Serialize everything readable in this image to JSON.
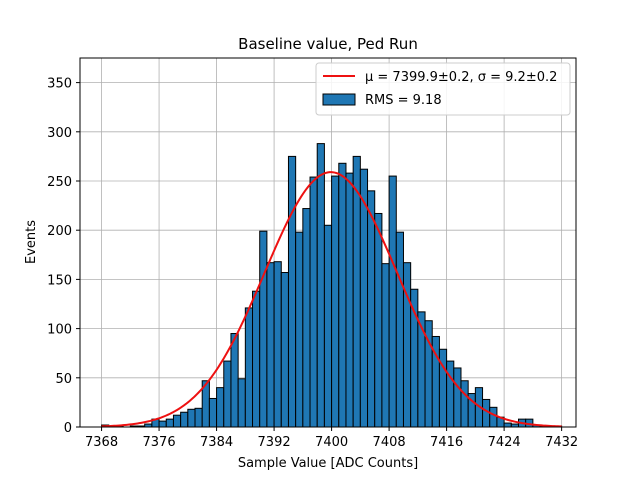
{
  "chart_data": {
    "type": "bar",
    "title": "Baseline value, Ped Run",
    "xlabel": "Sample Value [ADC Counts]",
    "ylabel": "Events",
    "xlim": [
      7365,
      7434
    ],
    "ylim": [
      0,
      375
    ],
    "xticks": [
      7368,
      7376,
      7384,
      7392,
      7400,
      7408,
      7416,
      7424,
      7432
    ],
    "yticks": [
      0,
      50,
      100,
      150,
      200,
      250,
      300,
      350
    ],
    "grid": true,
    "legend_position": "top-right",
    "bin_width": 1,
    "bin_start": 7368,
    "values": [
      2,
      0,
      1,
      0,
      1,
      1,
      3,
      8,
      6,
      8,
      12,
      15,
      18,
      19,
      47,
      29,
      40,
      67,
      95,
      49,
      121,
      138,
      199,
      167,
      168,
      157,
      275,
      198,
      222,
      254,
      288,
      205,
      255,
      268,
      258,
      275,
      262,
      240,
      217,
      166,
      255,
      198,
      167,
      140,
      117,
      108,
      92,
      79,
      67,
      60,
      47,
      34,
      40,
      28,
      20,
      10,
      4,
      3,
      8,
      8,
      2,
      1,
      0,
      1,
      0
    ],
    "series": [
      {
        "name": "RMS = 9.18",
        "type": "histogram",
        "color": "#1f77b4",
        "edgecolor": "#000000"
      },
      {
        "name": "$\\mu = 7399.9\\pm0.2$, $\\sigma = 9.2\\pm0.2$",
        "type": "gaussian-fit",
        "color": "#ee1111",
        "amplitude": 259,
        "mu": 7399.9,
        "sigma": 9.2
      }
    ]
  },
  "legend": {
    "fit_prefix": "μ = 7399.9±0.2, ",
    "fit_suffix": "σ = 9.2±0.2",
    "hist_label": "RMS = 9.18"
  }
}
